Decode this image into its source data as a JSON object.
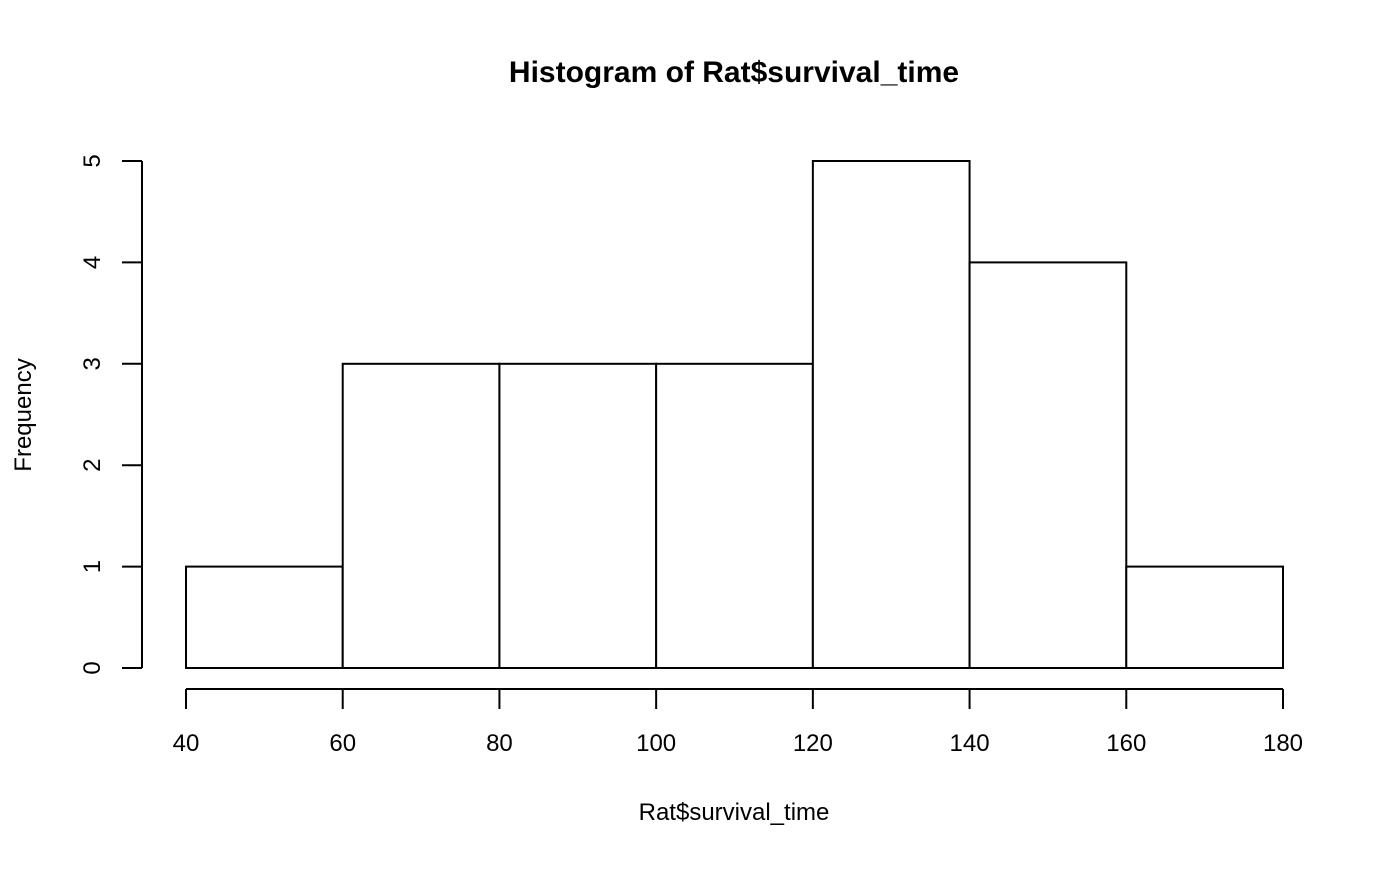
{
  "chart_data": {
    "type": "bar",
    "title": "Histogram of Rat$survival_time",
    "xlabel": "Rat$survival_time",
    "ylabel": "Frequency",
    "bins": [
      {
        "from": 40,
        "to": 60,
        "count": 1
      },
      {
        "from": 60,
        "to": 80,
        "count": 3
      },
      {
        "from": 80,
        "to": 100,
        "count": 3
      },
      {
        "from": 100,
        "to": 120,
        "count": 3
      },
      {
        "from": 120,
        "to": 140,
        "count": 5
      },
      {
        "from": 140,
        "to": 160,
        "count": 4
      },
      {
        "from": 160,
        "to": 180,
        "count": 1
      }
    ],
    "xlim": [
      40,
      180
    ],
    "ylim": [
      0,
      5
    ],
    "x_ticks": [
      40,
      60,
      80,
      100,
      120,
      140,
      160,
      180
    ],
    "y_ticks": [
      0,
      1,
      2,
      3,
      4,
      5
    ],
    "grid": false,
    "colors": {
      "bar_fill": "#ffffff",
      "bar_stroke": "#000000",
      "axis": "#000000"
    }
  }
}
